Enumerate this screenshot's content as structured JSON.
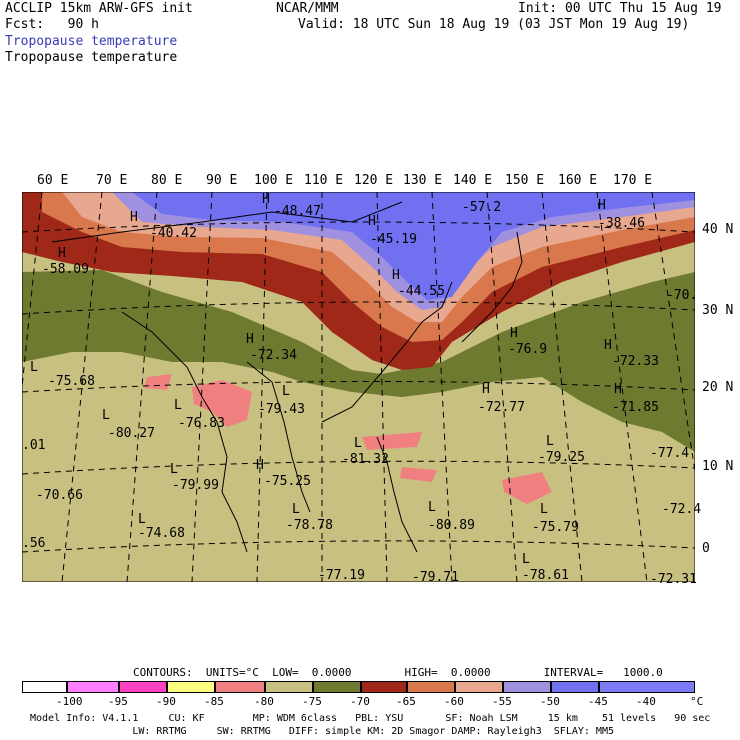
{
  "header": {
    "line1_left": "ACCLIP 15km ARW-GFS init",
    "line1_mid": "NCAR/MMM",
    "line1_right": "Init: 00 UTC Thu 15 Aug 19",
    "line2_left": "Fcst:   90 h",
    "line2_right": "Valid: 18 UTC Sun 18 Aug 19 (03 JST Mon 19 Aug 19)",
    "field_title_1": "Tropopause temperature",
    "field_title_2": "Tropopause temperature"
  },
  "map": {
    "lon_labels": [
      "60 E",
      "70 E",
      "80 E",
      "90 E",
      "100 E",
      "110 E",
      "120 E",
      "130 E",
      "140 E",
      "150 E",
      "160 E",
      "170 E"
    ],
    "lat_labels": [
      "40 N",
      "30 N",
      "20 N",
      "10 N",
      "0"
    ],
    "highs": [
      {
        "letter": "H",
        "value": "-40.42"
      },
      {
        "letter": "H",
        "value": "-48.47"
      },
      {
        "letter": "H",
        "value": "-45.19"
      },
      {
        "letter": "H",
        "value": "-57.2"
      },
      {
        "letter": "H",
        "value": "-38.46"
      },
      {
        "letter": "H",
        "value": "-58.09"
      },
      {
        "letter": "H",
        "value": "-44.55"
      },
      {
        "letter": "H",
        "value": "-72.34"
      },
      {
        "letter": "H",
        "value": "-76.9"
      },
      {
        "letter": "H",
        "value": "-72.33"
      },
      {
        "letter": "H",
        "value": "-72.77"
      },
      {
        "letter": "H",
        "value": "-71.85"
      },
      {
        "letter": "H",
        "value": "-75.25"
      }
    ],
    "lows": [
      {
        "letter": "L",
        "value": "-75.68"
      },
      {
        "letter": "L",
        "value": "-80.27"
      },
      {
        "letter": "L",
        "value": "-76.83"
      },
      {
        "letter": "L",
        "value": "-79.43"
      },
      {
        "letter": "L",
        "value": "-81.32"
      },
      {
        "letter": "L",
        "value": "-79.25"
      },
      {
        "letter": "L",
        "value": "-79.99"
      },
      {
        "letter": "L",
        "value": "-78.78"
      },
      {
        "letter": "L",
        "value": "-80.89"
      },
      {
        "letter": "L",
        "value": "-75.79"
      },
      {
        "letter": "L",
        "value": "-74.68"
      },
      {
        "letter": "L",
        "value": "-78.61"
      }
    ],
    "edge_labels": [
      "-70.",
      "-77.4",
      "-72.4",
      "-72.31",
      ".01",
      "-70.66",
      ".56",
      "-77.19",
      "-79.71"
    ]
  },
  "contours": {
    "caption": "CONTOURS:  UNITS=°C  LOW=  0.0000        HIGH=  0.0000        INTERVAL=   1000.0"
  },
  "colorbar": {
    "colors": [
      "#ffffff",
      "#ff80ff",
      "#ff40c0",
      "#ffff80",
      "#f08080",
      "#c8c080",
      "#6e7a30",
      "#a02818",
      "#d8784c",
      "#e8a890",
      "#a090e0",
      "#7070f0",
      "#7c7cf8"
    ],
    "tick_labels": [
      "-100",
      "-95",
      "-90",
      "-85",
      "-80",
      "-75",
      "-70",
      "-65",
      "-60",
      "-55",
      "-50",
      "-45",
      "-40",
      "°C"
    ]
  },
  "footer": {
    "line1": "Model Info: V4.1.1     CU: KF        MP: WDM 6class   PBL: YSU       SF: Noah LSM     15 km    51 levels   90 sec",
    "line2": "                 LW: RRTMG     SW: RRTMG   DIFF: simple KM: 2D Smagor DAMP: Rayleigh3  SFLAY: MM5"
  }
}
